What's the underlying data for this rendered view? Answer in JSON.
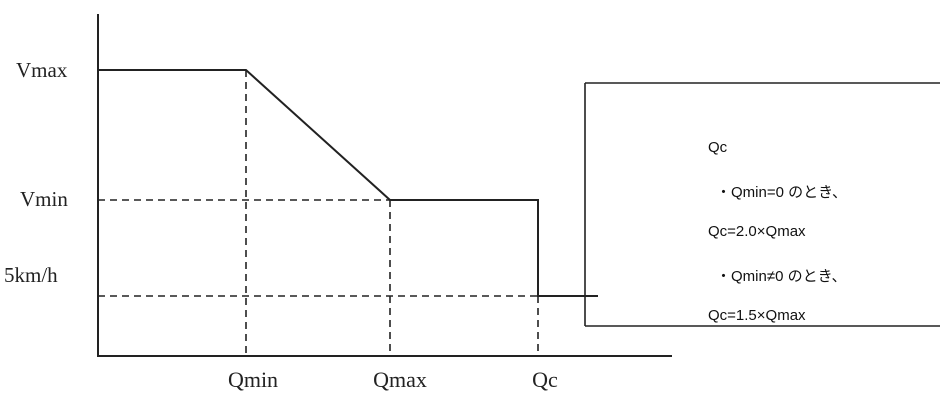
{
  "diagram": {
    "y_labels": {
      "vmax": "Vmax",
      "vmin": "Vmin",
      "five_kmh": "5km/h"
    },
    "x_labels": {
      "qmin": "Qmin",
      "qmax": "Qmax",
      "qc": "Qc"
    }
  },
  "note": {
    "title": "Qc",
    "case1_condition": "・Qmin=0 のとき、",
    "case1_formula": "Qc=2.0×Qmax",
    "case2_condition": "・Qmin≠0 のとき、",
    "case2_formula": "Qc=1.5×Qmax"
  }
}
